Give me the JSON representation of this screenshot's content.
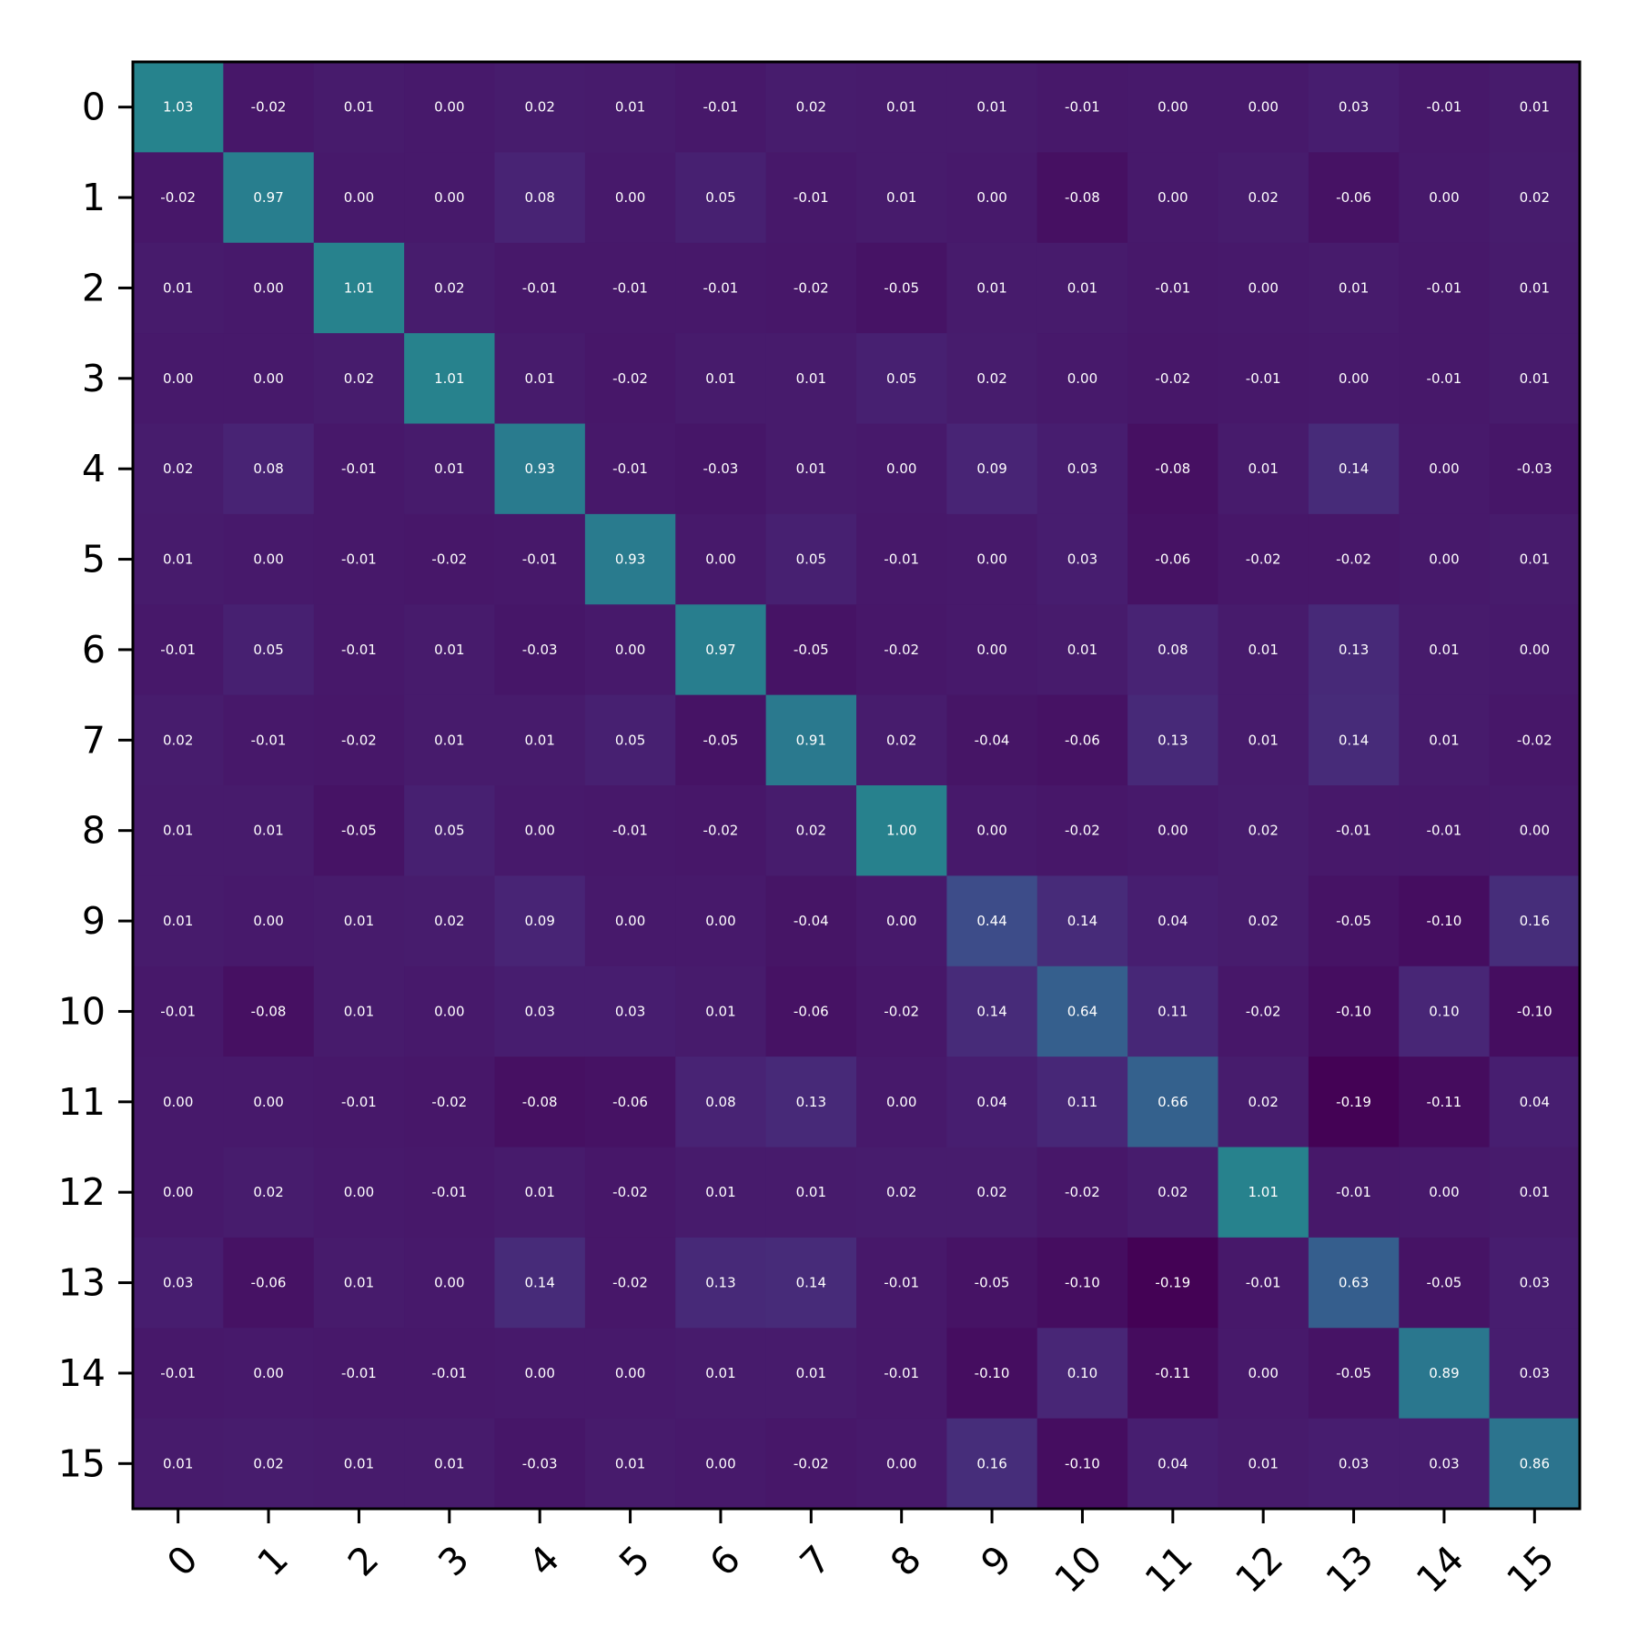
{
  "chart_data": {
    "type": "heatmap",
    "title": "",
    "xlabel": "",
    "ylabel": "",
    "x_tick_labels": [
      "0",
      "1",
      "2",
      "3",
      "4",
      "5",
      "6",
      "7",
      "8",
      "9",
      "10",
      "11",
      "12",
      "13",
      "14",
      "15"
    ],
    "y_tick_labels": [
      "0",
      "1",
      "2",
      "3",
      "4",
      "5",
      "6",
      "7",
      "8",
      "9",
      "10",
      "11",
      "12",
      "13",
      "14",
      "15"
    ],
    "colormap": "viridis",
    "color_range": [
      -0.2,
      2.0
    ],
    "cell_text_color": "#ffffff",
    "values": [
      [
        1.03,
        -0.02,
        0.01,
        -0.0,
        0.02,
        0.01,
        -0.01,
        0.02,
        0.01,
        0.01,
        -0.01,
        -0.0,
        -0.0,
        0.03,
        -0.01,
        0.01
      ],
      [
        -0.02,
        0.97,
        -0.0,
        0.0,
        0.08,
        -0.0,
        0.05,
        -0.01,
        0.01,
        -0.0,
        -0.08,
        -0.0,
        0.02,
        -0.06,
        -0.0,
        0.02
      ],
      [
        0.01,
        -0.0,
        1.01,
        0.02,
        -0.01,
        -0.01,
        -0.01,
        -0.02,
        -0.05,
        0.01,
        0.01,
        -0.01,
        -0.0,
        0.01,
        -0.01,
        0.01
      ],
      [
        -0.0,
        0.0,
        0.02,
        1.01,
        0.01,
        -0.02,
        0.01,
        0.01,
        0.05,
        0.02,
        -0.0,
        -0.02,
        -0.01,
        -0.0,
        -0.01,
        0.01
      ],
      [
        0.02,
        0.08,
        -0.01,
        0.01,
        0.93,
        -0.01,
        -0.03,
        0.01,
        0.0,
        0.09,
        0.03,
        -0.08,
        0.01,
        0.14,
        -0.0,
        -0.03
      ],
      [
        0.01,
        -0.0,
        -0.01,
        -0.02,
        -0.01,
        0.93,
        0.0,
        0.05,
        -0.01,
        0.0,
        0.03,
        -0.06,
        -0.02,
        -0.02,
        0.0,
        0.01
      ],
      [
        -0.01,
        0.05,
        -0.01,
        0.01,
        -0.03,
        0.0,
        0.97,
        -0.05,
        -0.02,
        -0.0,
        0.01,
        0.08,
        0.01,
        0.13,
        0.01,
        -0.0
      ],
      [
        0.02,
        -0.01,
        -0.02,
        0.01,
        0.01,
        0.05,
        -0.05,
        0.91,
        0.02,
        -0.04,
        -0.06,
        0.13,
        0.01,
        0.14,
        0.01,
        -0.02
      ],
      [
        0.01,
        0.01,
        -0.05,
        0.05,
        0.0,
        -0.01,
        -0.02,
        0.02,
        1.0,
        0.0,
        -0.02,
        -0.0,
        0.02,
        -0.01,
        -0.01,
        -0.0
      ],
      [
        0.01,
        -0.0,
        0.01,
        0.02,
        0.09,
        0.0,
        -0.0,
        -0.04,
        0.0,
        0.44,
        0.14,
        0.04,
        0.02,
        -0.05,
        -0.1,
        0.16
      ],
      [
        -0.01,
        -0.08,
        0.01,
        -0.0,
        0.03,
        0.03,
        0.01,
        -0.06,
        -0.02,
        0.14,
        0.64,
        0.11,
        -0.02,
        -0.1,
        0.1,
        -0.1
      ],
      [
        -0.0,
        -0.0,
        -0.01,
        -0.02,
        -0.08,
        -0.06,
        0.08,
        0.13,
        -0.0,
        0.04,
        0.11,
        0.66,
        0.02,
        -0.19,
        -0.11,
        0.04
      ],
      [
        -0.0,
        0.02,
        -0.0,
        -0.01,
        0.01,
        -0.02,
        0.01,
        0.01,
        0.02,
        0.02,
        -0.02,
        0.02,
        1.01,
        -0.01,
        -0.0,
        0.01
      ],
      [
        0.03,
        -0.06,
        0.01,
        -0.0,
        0.14,
        -0.02,
        0.13,
        0.14,
        -0.01,
        -0.05,
        -0.1,
        -0.19,
        -0.01,
        0.63,
        -0.05,
        0.03
      ],
      [
        -0.01,
        -0.0,
        -0.01,
        -0.01,
        -0.0,
        0.0,
        0.01,
        0.01,
        -0.01,
        -0.1,
        0.1,
        -0.11,
        -0.0,
        -0.05,
        0.89,
        0.03
      ],
      [
        0.01,
        0.02,
        0.01,
        0.01,
        -0.03,
        0.01,
        -0.0,
        -0.02,
        -0.0,
        0.16,
        -0.1,
        0.04,
        0.01,
        0.03,
        0.03,
        0.86
      ]
    ]
  }
}
